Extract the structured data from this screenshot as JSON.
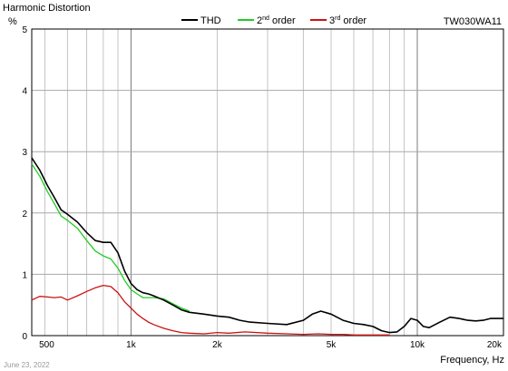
{
  "chart_data": {
    "type": "line",
    "title": "Harmonic Distortion",
    "ylabel": "%",
    "xlabel": "Frequency, Hz",
    "model_label": "TW030WA11",
    "date_label": "June 23, 2022",
    "x_scale": "log",
    "xlim": [
      450,
      20000
    ],
    "ylim": [
      0,
      5
    ],
    "y_ticks": [
      0,
      1,
      2,
      3,
      4,
      5
    ],
    "x_ticks": [
      {
        "value": 500,
        "label": "500"
      },
      {
        "value": 1000,
        "label": "1k"
      },
      {
        "value": 2000,
        "label": "2k"
      },
      {
        "value": 5000,
        "label": "5k"
      },
      {
        "value": 10000,
        "label": "10k"
      },
      {
        "value": 20000,
        "label": "20k"
      }
    ],
    "grid": true,
    "legend_placement": "top-center",
    "series": [
      {
        "name": "THD",
        "color": "#000000",
        "x": [
          450,
          480,
          510,
          540,
          570,
          600,
          650,
          700,
          750,
          800,
          850,
          900,
          950,
          1000,
          1050,
          1100,
          1150,
          1200,
          1300,
          1400,
          1500,
          1600,
          1800,
          2000,
          2200,
          2400,
          2600,
          3000,
          3500,
          4000,
          4300,
          4600,
          5000,
          5500,
          6000,
          6500,
          7000,
          7500,
          8000,
          8500,
          9000,
          9500,
          10000,
          10500,
          11000,
          12000,
          13000,
          14000,
          15000,
          16000,
          17000,
          18000,
          20000
        ],
        "values": [
          2.9,
          2.7,
          2.45,
          2.25,
          2.05,
          1.98,
          1.85,
          1.68,
          1.55,
          1.52,
          1.52,
          1.35,
          1.05,
          0.85,
          0.75,
          0.7,
          0.68,
          0.65,
          0.58,
          0.5,
          0.42,
          0.38,
          0.35,
          0.32,
          0.3,
          0.25,
          0.22,
          0.2,
          0.18,
          0.25,
          0.35,
          0.4,
          0.35,
          0.25,
          0.2,
          0.18,
          0.15,
          0.08,
          0.05,
          0.06,
          0.15,
          0.28,
          0.25,
          0.15,
          0.13,
          0.22,
          0.3,
          0.28,
          0.25,
          0.24,
          0.25,
          0.28,
          0.28
        ]
      },
      {
        "name": "2nd order",
        "color": "#22cc22",
        "x": [
          450,
          480,
          510,
          540,
          570,
          600,
          650,
          700,
          750,
          800,
          850,
          900,
          950,
          1000,
          1050,
          1100,
          1150,
          1200,
          1300,
          1400,
          1500,
          1600
        ],
        "values": [
          2.8,
          2.6,
          2.35,
          2.15,
          1.95,
          1.88,
          1.75,
          1.55,
          1.38,
          1.3,
          1.25,
          1.1,
          0.9,
          0.75,
          0.68,
          0.62,
          0.62,
          0.62,
          0.6,
          0.52,
          0.45,
          0.4
        ]
      },
      {
        "name": "3rd order",
        "color": "#cc1111",
        "x": [
          450,
          480,
          510,
          540,
          570,
          600,
          650,
          700,
          750,
          800,
          850,
          900,
          950,
          1000,
          1050,
          1100,
          1150,
          1200,
          1300,
          1400,
          1500,
          1600,
          1800,
          2000,
          2200,
          2500,
          3000,
          3500,
          4000,
          4500,
          5000,
          5500,
          6000,
          7000,
          8000
        ],
        "values": [
          0.58,
          0.64,
          0.63,
          0.62,
          0.63,
          0.58,
          0.65,
          0.72,
          0.78,
          0.82,
          0.8,
          0.7,
          0.55,
          0.45,
          0.35,
          0.28,
          0.22,
          0.18,
          0.12,
          0.08,
          0.05,
          0.04,
          0.03,
          0.05,
          0.04,
          0.06,
          0.04,
          0.03,
          0.02,
          0.03,
          0.02,
          0.02,
          0.01,
          0.01,
          0.01
        ]
      }
    ]
  }
}
